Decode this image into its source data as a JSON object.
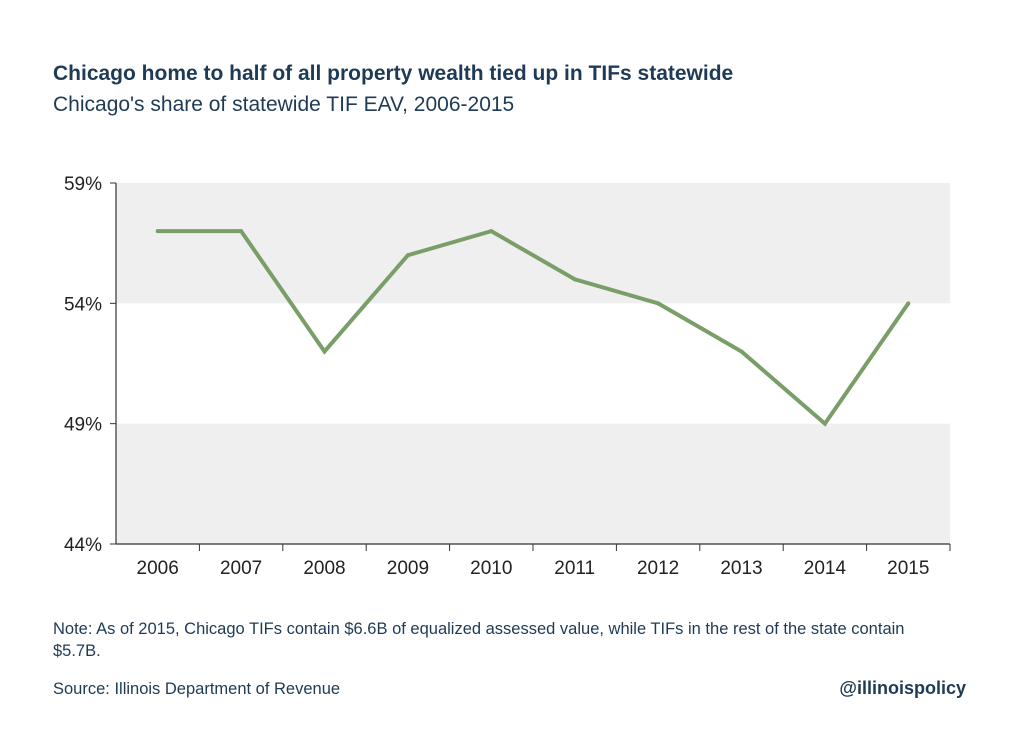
{
  "chart_data": {
    "type": "line",
    "title": "Chicago home to half of all property wealth tied up in TIFs statewide",
    "subtitle": "Chicago's share of statewide TIF EAV, 2006-2015",
    "xlabel": "",
    "ylabel": "",
    "categories": [
      "2006",
      "2007",
      "2008",
      "2009",
      "2010",
      "2011",
      "2012",
      "2013",
      "2014",
      "2015"
    ],
    "series": [
      {
        "name": "Chicago's share of statewide TIF EAV",
        "values": [
          57,
          57,
          52,
          56,
          57,
          55,
          54,
          52,
          49,
          54
        ],
        "color": "#7a9e68"
      }
    ],
    "ylim": [
      44,
      59
    ],
    "yticks": [
      44,
      49,
      54,
      59
    ],
    "ytick_labels": [
      "44%",
      "49%",
      "54%",
      "59%"
    ],
    "grid": "alternating bands",
    "band_color": "#efefef",
    "axis_color": "#333333"
  },
  "footer": {
    "note": "Note: As of 2015, Chicago TIFs contain $6.6B of equalized assessed value, while TIFs in the rest of the state contain $5.7B.",
    "source": "Source:  Illinois Department of Revenue",
    "handle": "@illinoispolicy"
  }
}
